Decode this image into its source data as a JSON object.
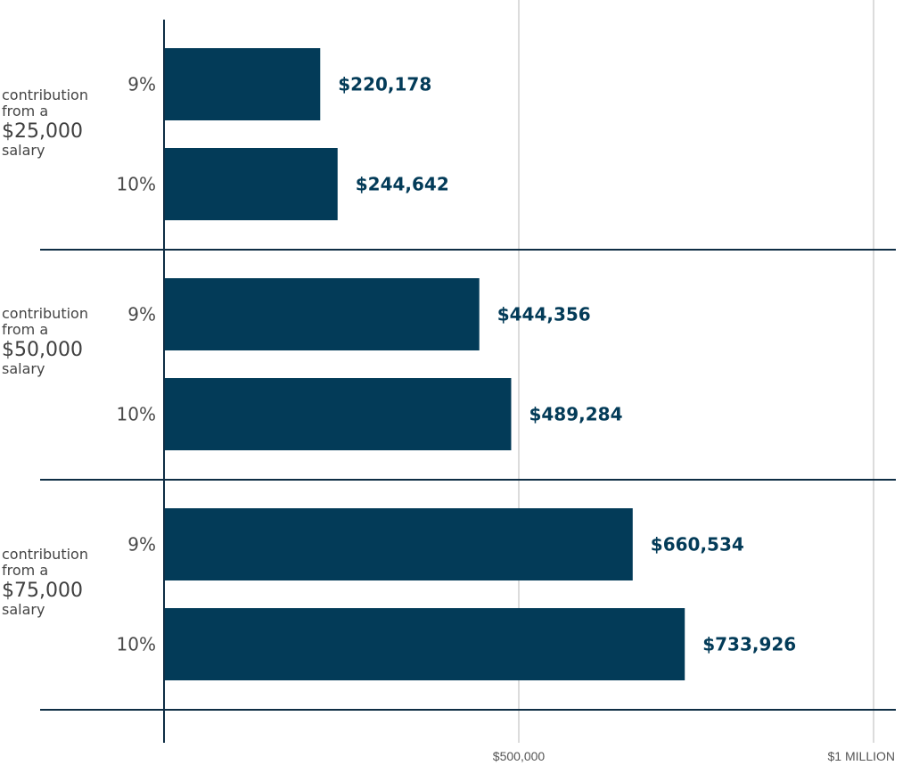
{
  "chart_data": {
    "type": "bar",
    "orientation": "horizontal",
    "xlim": [
      0,
      1000000
    ],
    "grid": true,
    "x_ticks": [
      {
        "value": 500000,
        "label": "$500,000"
      },
      {
        "value": 1000000,
        "label": "$1 MILLION"
      }
    ],
    "groups": [
      {
        "label_line1": "contribution",
        "label_line2": "from a",
        "salary": "$25,000",
        "label_line4": "salary",
        "bars": [
          {
            "category": "9%",
            "value": 220178,
            "value_label": "$220,178"
          },
          {
            "category": "10%",
            "value": 244642,
            "value_label": "$244,642"
          }
        ]
      },
      {
        "label_line1": "contribution",
        "label_line2": "from a",
        "salary": "$50,000",
        "label_line4": "salary",
        "bars": [
          {
            "category": "9%",
            "value": 444356,
            "value_label": "$444,356"
          },
          {
            "category": "10%",
            "value": 489284,
            "value_label": "$489,284"
          }
        ]
      },
      {
        "label_line1": "contribution",
        "label_line2": "from a",
        "salary": "$75,000",
        "label_line4": "salary",
        "bars": [
          {
            "category": "9%",
            "value": 660534,
            "value_label": "$660,534"
          },
          {
            "category": "10%",
            "value": 733926,
            "value_label": "$733,926"
          }
        ]
      }
    ],
    "colors": {
      "bar": "#033b58",
      "value_label": "#033b58",
      "category_label": "#4a4a4a",
      "axis": "#0f2e45",
      "gridline": "#dcdcdc",
      "tick_label": "#555555"
    }
  }
}
